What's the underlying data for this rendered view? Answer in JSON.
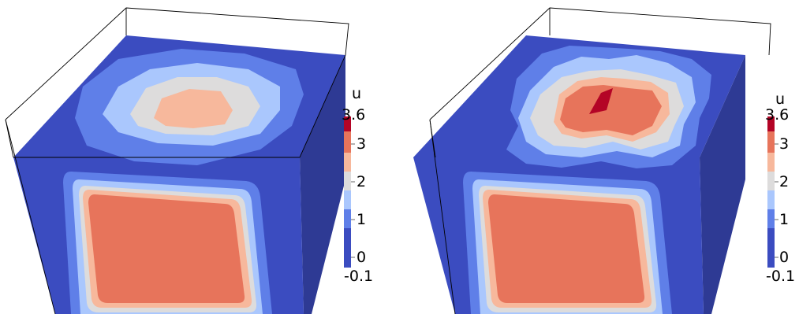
{
  "panels": [
    {
      "variable": "u",
      "colorbar": {
        "max_label": "3.6",
        "min_label": "-0.1",
        "ticks": [
          "3",
          "2",
          "1",
          "0"
        ]
      }
    },
    {
      "variable": "u",
      "colorbar": {
        "max_label": "3.6",
        "min_label": "-0.1",
        "ticks": [
          "3",
          "2",
          "1",
          "0"
        ]
      }
    }
  ],
  "colors": {
    "level_0": "#3b4cc0",
    "level_1": "#5f7fe8",
    "level_2": "#aac7fd",
    "level_3": "#dddcdc",
    "level_4": "#f7b89c",
    "level_5": "#e7745b",
    "level_6": "#b40426",
    "side_dark": "#2e3a94"
  }
}
